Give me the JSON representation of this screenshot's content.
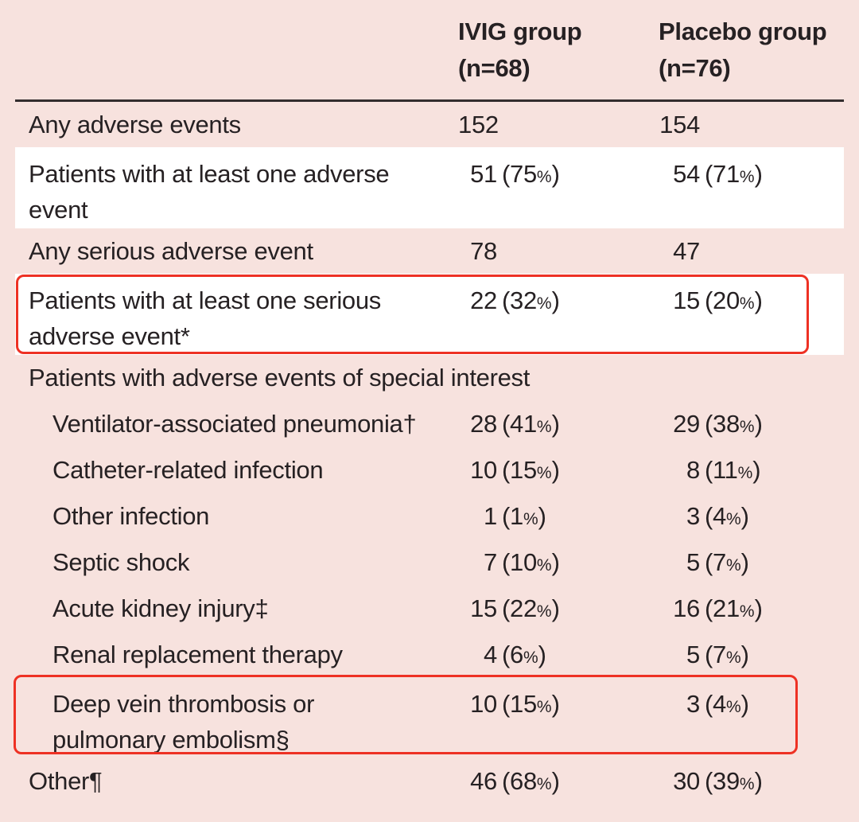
{
  "table": {
    "columns": [
      {
        "label": "IVIG group",
        "sub": "(n=68)"
      },
      {
        "label": "Placebo group",
        "sub": "(n=76)"
      }
    ],
    "rows": [
      {
        "label": "Any adverse events",
        "ivig": "152",
        "placebo": "154",
        "bg": "pink"
      },
      {
        "label": "Patients with at least one adverse\nevent",
        "ivig": "51 (75%)",
        "placebo": "54 (71%)",
        "bg": "white",
        "twoline": true
      },
      {
        "label": "Any serious adverse event",
        "ivig": "78",
        "placebo": "47",
        "bg": "pink"
      },
      {
        "label": "Patients with at least one serious\nadverse event*",
        "ivig": "22 (32%)",
        "placebo": "15 (20%)",
        "bg": "white",
        "twoline": true,
        "boxed": true
      },
      {
        "label": "Patients with adverse events of special interest",
        "section": true,
        "bg": "pink"
      },
      {
        "label": "Ventilator-associated pneumonia†",
        "ivig": "28 (41%)",
        "placebo": "29 (38%)",
        "bg": "pink",
        "indent": true
      },
      {
        "label": "Catheter-related infection",
        "ivig": "10 (15%)",
        "placebo": "8 (11%)",
        "bg": "pink",
        "indent": true
      },
      {
        "label": "Other infection",
        "ivig": "1 (1%)",
        "placebo": "3 (4%)",
        "bg": "pink",
        "indent": true
      },
      {
        "label": "Septic shock",
        "ivig": "7 (10%)",
        "placebo": "5 (7%)",
        "bg": "pink",
        "indent": true
      },
      {
        "label": "Acute kidney injury‡",
        "ivig": "15 (22%)",
        "placebo": "16 (21%)",
        "bg": "pink",
        "indent": true
      },
      {
        "label": "Renal replacement therapy",
        "ivig": "4 (6%)",
        "placebo": "5 (7%)",
        "bg": "pink",
        "indent": true
      },
      {
        "label": "Deep vein thrombosis or\npulmonary embolism§",
        "ivig": "10 (15%)",
        "placebo": "3 (4%)",
        "bg": "pink",
        "indent": true,
        "twoline": true,
        "boxed": true
      },
      {
        "label": "Other¶",
        "ivig": "46 (68%)",
        "placebo": "30 (39%)",
        "bg": "pink"
      }
    ],
    "colors": {
      "background_pink": "#f7e2de",
      "row_highlight_white": "#ffffff",
      "callout_red": "#ee3124",
      "text": "#262123",
      "header_rule": "#332d2e"
    }
  }
}
